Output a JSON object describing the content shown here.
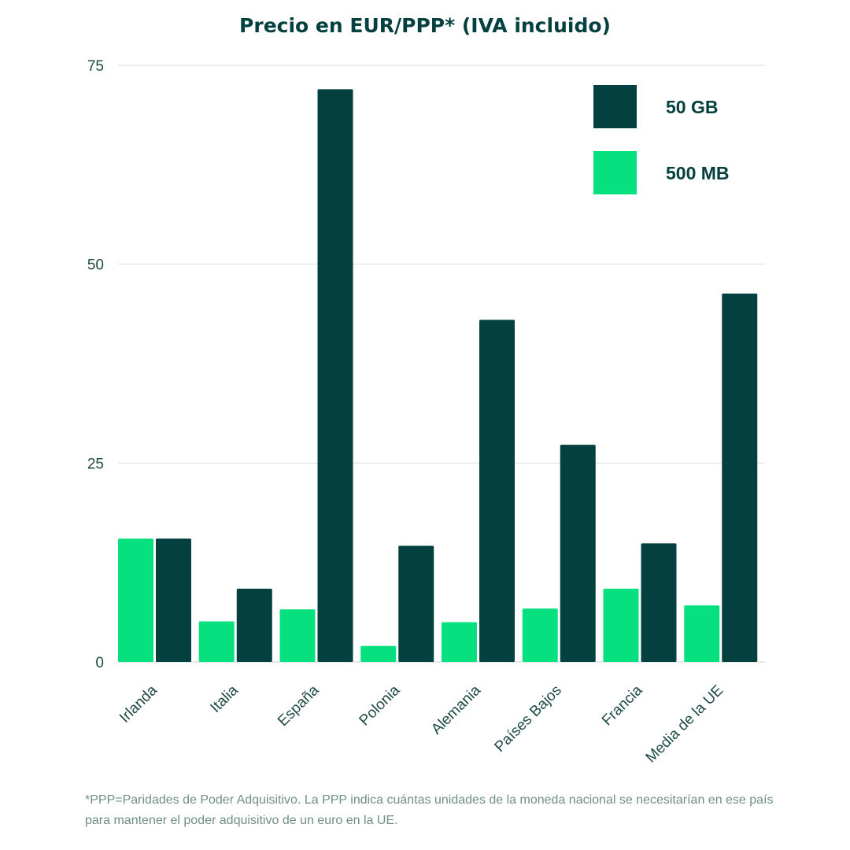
{
  "chart_data": {
    "type": "bar",
    "title": "Precio en EUR/PPP* (IVA incluido)",
    "categories": [
      "Irlanda",
      "Italia",
      "España",
      "Polonia",
      "Alemania",
      "Países Bajos",
      "Francia",
      "Media de la UE"
    ],
    "series": [
      {
        "name": "500 MB",
        "color": "#06e07f",
        "values": [
          15.5,
          5.1,
          6.6,
          2.0,
          5.0,
          6.7,
          9.2,
          7.1
        ]
      },
      {
        "name": "50 GB",
        "color": "#03403f",
        "values": [
          15.5,
          9.2,
          72.0,
          14.6,
          43.0,
          27.3,
          14.9,
          46.3
        ]
      }
    ],
    "yticks": [
      0,
      25,
      50,
      75
    ],
    "ylim": [
      0,
      75
    ],
    "grid": true,
    "legend": "top-right",
    "legend_order": [
      "50 GB",
      "500 MB"
    ]
  },
  "footnote": "*PPP=Paridades de Poder Adquisitivo. La PPP indica cuántas unidades de la moneda nacional se necesitarían en ese país para mantener el poder adquisitivo de un euro en la UE."
}
